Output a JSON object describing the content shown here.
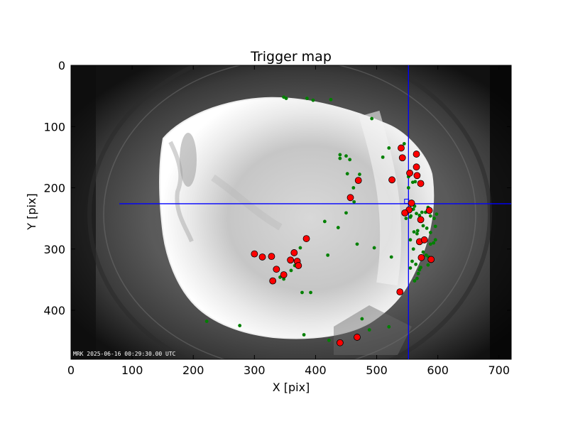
{
  "chart_data": {
    "type": "scatter",
    "title": "Trigger map",
    "xlabel": "X [pix]",
    "ylabel": "Y [pix]",
    "xlim": [
      0,
      720
    ],
    "ylim": [
      480,
      0
    ],
    "xticks": [
      "0",
      "100",
      "200",
      "300",
      "400",
      "500",
      "600",
      "700"
    ],
    "yticks": [
      "0",
      "100",
      "200",
      "300",
      "400"
    ],
    "xtick_values": [
      0,
      100,
      200,
      300,
      400,
      500,
      600,
      700
    ],
    "ytick_values": [
      0,
      100,
      200,
      300,
      400
    ],
    "grid": false,
    "background": "all-sky camera image",
    "timestamp_label": "MRK 2025-06-16 00:29:30.00 UTC",
    "crosshair": {
      "x": 552,
      "y": 226,
      "color": "#0000ff"
    },
    "crosshair_marker": {
      "x": 549,
      "y": 222
    },
    "series": [
      {
        "marker": "large-circle",
        "color": "#ff0000",
        "edge": "#000000",
        "points": [
          [
            300,
            308
          ],
          [
            313,
            313
          ],
          [
            328,
            312
          ],
          [
            336,
            333
          ],
          [
            348,
            342
          ],
          [
            330,
            352
          ],
          [
            359,
            318
          ],
          [
            365,
            306
          ],
          [
            370,
            320
          ],
          [
            372,
            327
          ],
          [
            385,
            283
          ],
          [
            457,
            216
          ],
          [
            470,
            188
          ],
          [
            525,
            187
          ],
          [
            540,
            135
          ],
          [
            542,
            151
          ],
          [
            554,
            176
          ],
          [
            565,
            145
          ],
          [
            565,
            166
          ],
          [
            566,
            180
          ],
          [
            572,
            193
          ],
          [
            557,
            225
          ],
          [
            553,
            236
          ],
          [
            546,
            241
          ],
          [
            572,
            252
          ],
          [
            586,
            237
          ],
          [
            570,
            288
          ],
          [
            578,
            285
          ],
          [
            573,
            314
          ],
          [
            589,
            317
          ],
          [
            538,
            370
          ],
          [
            468,
            444
          ],
          [
            440,
            453
          ]
        ]
      },
      {
        "marker": "small-dot",
        "color": "#008000",
        "points": [
          [
            348,
            52
          ],
          [
            352,
            54
          ],
          [
            386,
            54
          ],
          [
            396,
            57
          ],
          [
            425,
            56
          ],
          [
            492,
            87
          ],
          [
            440,
            146
          ],
          [
            440,
            152
          ],
          [
            450,
            148
          ],
          [
            456,
            154
          ],
          [
            452,
            177
          ],
          [
            462,
            200
          ],
          [
            472,
            178
          ],
          [
            463,
            223
          ],
          [
            450,
            241
          ],
          [
            437,
            265
          ],
          [
            415,
            255
          ],
          [
            420,
            310
          ],
          [
            468,
            292
          ],
          [
            496,
            298
          ],
          [
            524,
            313
          ],
          [
            520,
            135
          ],
          [
            510,
            150
          ],
          [
            545,
            128
          ],
          [
            552,
            182
          ],
          [
            559,
            191
          ],
          [
            563,
            190
          ],
          [
            552,
            200
          ],
          [
            556,
            246
          ],
          [
            548,
            250
          ],
          [
            565,
            242
          ],
          [
            570,
            245
          ],
          [
            574,
            240
          ],
          [
            580,
            240
          ],
          [
            584,
            232
          ],
          [
            588,
            246
          ],
          [
            594,
            250
          ],
          [
            598,
            243
          ],
          [
            596,
            263
          ],
          [
            588,
            273
          ],
          [
            582,
            266
          ],
          [
            576,
            262
          ],
          [
            566,
            275
          ],
          [
            567,
            270
          ],
          [
            561,
            272
          ],
          [
            555,
            285
          ],
          [
            596,
            285
          ],
          [
            593,
            290
          ],
          [
            564,
            325
          ],
          [
            568,
            340
          ],
          [
            566,
            348
          ],
          [
            562,
            352
          ],
          [
            560,
            300
          ],
          [
            558,
            320
          ],
          [
            555,
            331
          ],
          [
            572,
            330
          ],
          [
            570,
            334
          ],
          [
            584,
            326
          ],
          [
            581,
            310
          ],
          [
            560,
            235
          ],
          [
            562,
            230
          ],
          [
            576,
            305
          ],
          [
            585,
            313
          ],
          [
            588,
            292
          ],
          [
            375,
            298
          ],
          [
            366,
            327
          ],
          [
            360,
            335
          ],
          [
            348,
            349
          ],
          [
            342,
            346
          ],
          [
            392,
            371
          ],
          [
            378,
            371
          ],
          [
            222,
            418
          ],
          [
            276,
            425
          ],
          [
            381,
            440
          ],
          [
            422,
            449
          ],
          [
            476,
            414
          ],
          [
            488,
            432
          ],
          [
            520,
            427
          ],
          [
            556,
            228
          ],
          [
            555,
            248
          ]
        ]
      }
    ]
  }
}
